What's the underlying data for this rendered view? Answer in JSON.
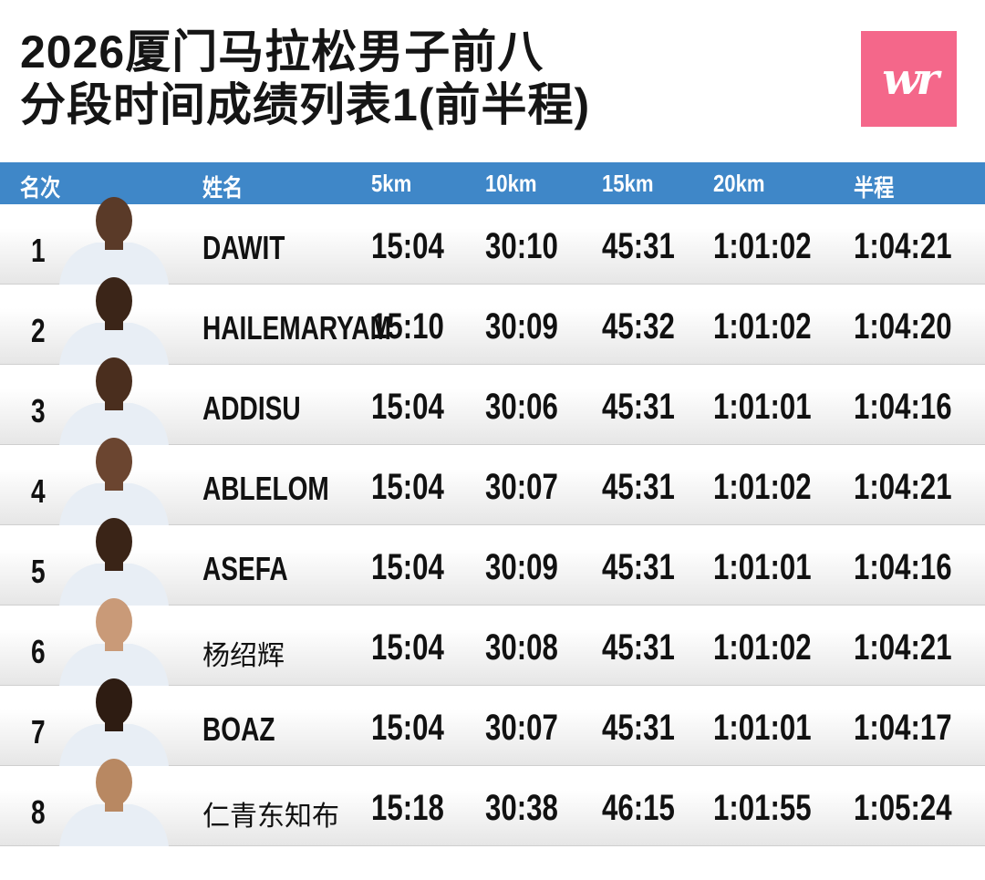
{
  "title": {
    "line1": "2026厦门马拉松男子前八",
    "line2": "分段时间成绩列表1(前半程)"
  },
  "logo": {
    "text": "wr",
    "color": "#f4678a"
  },
  "header_color": "#3f87c8",
  "columns": [
    "名次",
    "姓名",
    "5km",
    "10km",
    "15km",
    "20km",
    "半程"
  ],
  "rows": [
    {
      "rank": "1",
      "name": "DAWIT",
      "splits": [
        "15:04",
        "30:10",
        "45:31",
        "1:01:02",
        "1:04:21"
      ]
    },
    {
      "rank": "2",
      "name": "HAILEMARYAM",
      "splits": [
        "15:10",
        "30:09",
        "45:32",
        "1:01:02",
        "1:04:20"
      ]
    },
    {
      "rank": "3",
      "name": "ADDISU",
      "splits": [
        "15:04",
        "30:06",
        "45:31",
        "1:01:01",
        "1:04:16"
      ]
    },
    {
      "rank": "4",
      "name": "ABLELOM",
      "splits": [
        "15:04",
        "30:07",
        "45:31",
        "1:01:02",
        "1:04:21"
      ]
    },
    {
      "rank": "5",
      "name": "ASEFA",
      "splits": [
        "15:04",
        "30:09",
        "45:31",
        "1:01:01",
        "1:04:16"
      ]
    },
    {
      "rank": "6",
      "name": "杨绍辉",
      "splits": [
        "15:04",
        "30:08",
        "45:31",
        "1:01:02",
        "1:04:21"
      ]
    },
    {
      "rank": "7",
      "name": "BOAZ",
      "splits": [
        "15:04",
        "30:07",
        "45:31",
        "1:01:01",
        "1:04:17"
      ]
    },
    {
      "rank": "8",
      "name": "仁青东知布",
      "splits": [
        "15:18",
        "30:38",
        "46:15",
        "1:01:55",
        "1:05:24"
      ]
    }
  ]
}
